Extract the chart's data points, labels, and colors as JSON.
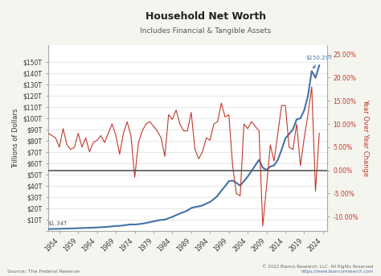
{
  "title": "Household Net Worth",
  "subtitle": "Includes Financial & Tangible Assets",
  "ylabel_left": "Trillions of Dollars",
  "ylabel_right": "Year Over Year Change",
  "source_text": "Source: The Federal Reserve",
  "copyright_text": "© 2022 Bianco Research, LLC. All Rights Reserved\nhttps://www.biancoresearch.com",
  "annotation_label": "$150.29T",
  "annotation_label2": "$1.34T",
  "xlim": [
    1951,
    2025
  ],
  "ylim_left": [
    0,
    165
  ],
  "ylim_right": [
    -13,
    27
  ],
  "yticks_left": [
    0,
    10,
    20,
    30,
    40,
    50,
    60,
    70,
    80,
    90,
    100,
    110,
    120,
    130,
    140,
    150
  ],
  "ytick_labels_left": [
    "",
    "$10T",
    "$20T",
    "$30T",
    "$40T",
    "$50T",
    "$60T",
    "$70T",
    "$80T",
    "$90T",
    "$100T",
    "$110T",
    "$120T",
    "$130T",
    "$140T",
    "$150T"
  ],
  "yticks_right": [
    -10,
    -5,
    0,
    5,
    10,
    15,
    20,
    25
  ],
  "ytick_labels_right": [
    "-10.00%",
    "-5.00%",
    "0.00%",
    "5.00%",
    "10.00%",
    "15.00%",
    "20.00%",
    "25.00%"
  ],
  "xticks": [
    1954,
    1959,
    1964,
    1969,
    1974,
    1979,
    1984,
    1989,
    1994,
    1999,
    2004,
    2009,
    2014,
    2019,
    2024
  ],
  "bg_color": "#f5f5f0",
  "plot_bg_color": "#ffffff",
  "blue_color": "#4472a8",
  "red_color": "#c0392b",
  "zero_line_color": "#555555",
  "blue_linewidth": 1.5,
  "red_linewidth": 0.8,
  "years": [
    1951,
    1952,
    1953,
    1954,
    1955,
    1956,
    1957,
    1958,
    1959,
    1960,
    1961,
    1962,
    1963,
    1964,
    1965,
    1966,
    1967,
    1968,
    1969,
    1970,
    1971,
    1972,
    1973,
    1974,
    1975,
    1976,
    1977,
    1978,
    1979,
    1980,
    1981,
    1982,
    1983,
    1984,
    1985,
    1986,
    1987,
    1988,
    1989,
    1990,
    1991,
    1992,
    1993,
    1994,
    1995,
    1996,
    1997,
    1998,
    1999,
    2000,
    2001,
    2002,
    2003,
    2004,
    2005,
    2006,
    2007,
    2008,
    2009,
    2010,
    2011,
    2012,
    2013,
    2014,
    2015,
    2016,
    2017,
    2018,
    2019,
    2020,
    2021,
    2022,
    2023
  ],
  "net_worth": [
    1.34,
    1.45,
    1.52,
    1.58,
    1.72,
    1.82,
    1.9,
    1.98,
    2.15,
    2.25,
    2.4,
    2.5,
    2.65,
    2.82,
    3.02,
    3.2,
    3.45,
    3.8,
    4.1,
    4.25,
    4.6,
    5.1,
    5.5,
    5.4,
    5.7,
    6.2,
    6.8,
    7.5,
    8.2,
    8.9,
    9.5,
    9.8,
    11.0,
    12.2,
    13.8,
    15.2,
    16.5,
    17.9,
    20.1,
    21.0,
    21.5,
    22.4,
    24.0,
    25.5,
    28.0,
    31.0,
    35.5,
    39.5,
    44.0,
    44.5,
    42.5,
    40.0,
    44.0,
    48.0,
    53.0,
    58.0,
    63.0,
    56.0,
    54.0,
    57.0,
    58.0,
    63.0,
    72.0,
    82.0,
    86.0,
    90.0,
    99.0,
    100.0,
    107.0,
    120.0,
    142.0,
    136.0,
    147.0
  ],
  "yoy_change": [
    8.0,
    7.5,
    7.0,
    5.0,
    9.0,
    5.5,
    4.5,
    5.0,
    8.0,
    5.0,
    7.0,
    4.0,
    6.0,
    6.5,
    7.5,
    6.0,
    8.0,
    10.0,
    7.5,
    3.5,
    8.0,
    10.5,
    7.5,
    -1.5,
    6.0,
    8.5,
    10.0,
    10.5,
    9.5,
    8.5,
    7.0,
    3.0,
    12.0,
    11.0,
    13.0,
    10.0,
    8.5,
    8.5,
    12.5,
    4.5,
    2.5,
    4.0,
    7.0,
    6.5,
    10.0,
    10.5,
    14.5,
    11.5,
    12.0,
    1.0,
    -5.0,
    -5.5,
    10.0,
    9.0,
    10.5,
    9.5,
    8.5,
    -12.0,
    -3.5,
    5.5,
    2.0,
    8.0,
    14.0,
    14.0,
    5.0,
    4.5,
    10.0,
    1.0,
    7.0,
    12.0,
    18.0,
    -4.5,
    8.0
  ]
}
